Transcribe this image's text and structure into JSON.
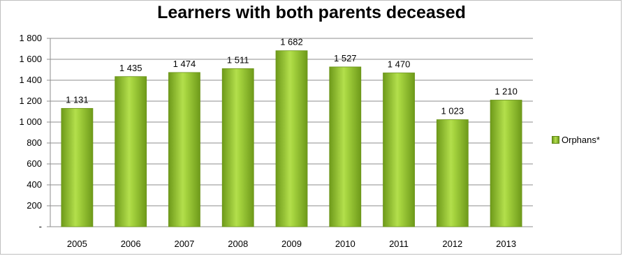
{
  "chart_data": {
    "type": "bar",
    "title": "Learners with both parents deceased",
    "categories": [
      "2005",
      "2006",
      "2007",
      "2008",
      "2009",
      "2010",
      "2011",
      "2012",
      "2013"
    ],
    "series": [
      {
        "name": "Orphans*",
        "values": [
          1131,
          1435,
          1474,
          1511,
          1682,
          1527,
          1470,
          1023,
          1210
        ],
        "data_labels": [
          "1 131",
          "1 435",
          "1 474",
          "1 511",
          "1 682",
          "1 527",
          "1 470",
          "1 023",
          "1 210"
        ]
      }
    ],
    "y_ticks": [
      {
        "value": 0,
        "label": "-"
      },
      {
        "value": 200,
        "label": "200"
      },
      {
        "value": 400,
        "label": "400"
      },
      {
        "value": 600,
        "label": "600"
      },
      {
        "value": 800,
        "label": "800"
      },
      {
        "value": 1000,
        "label": "1 000"
      },
      {
        "value": 1200,
        "label": "1 200"
      },
      {
        "value": 1400,
        "label": "1 400"
      },
      {
        "value": 1600,
        "label": "1 600"
      },
      {
        "value": 1800,
        "label": "1 800"
      }
    ],
    "ylim": [
      0,
      1800
    ],
    "grid": true,
    "legend_position": "right",
    "bar_color": "#8dc42e"
  }
}
